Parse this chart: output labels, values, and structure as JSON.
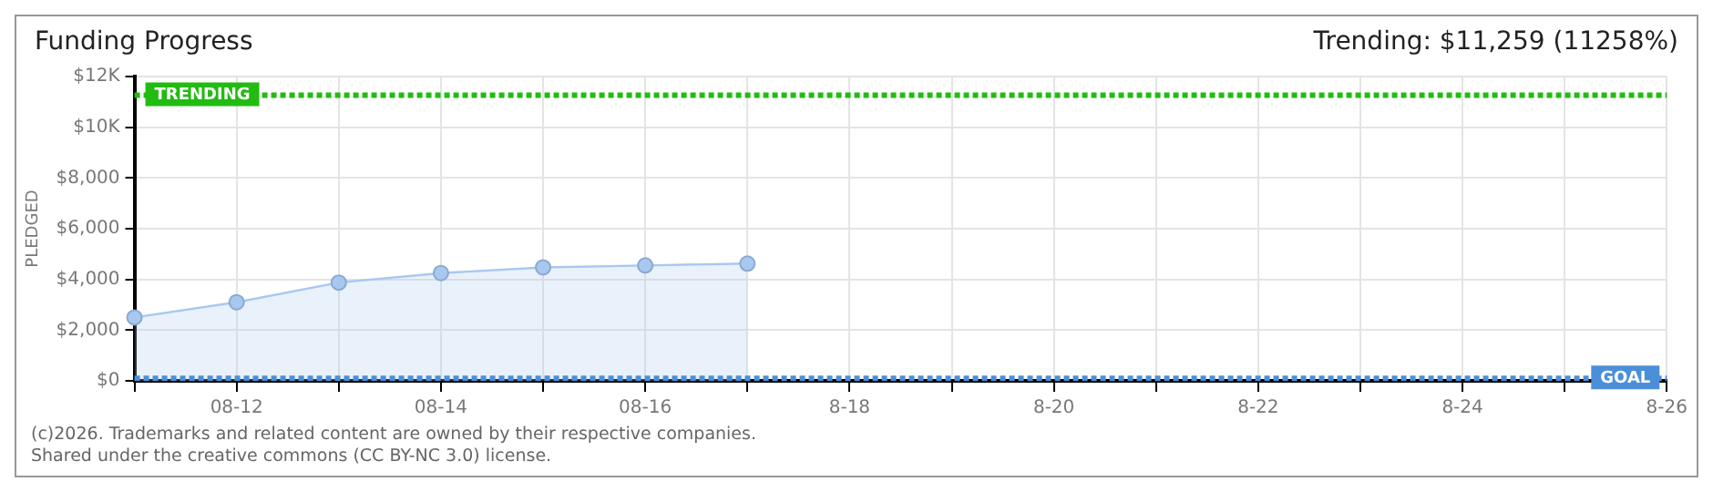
{
  "chart_data": {
    "type": "area",
    "title": "Funding Progress",
    "subtitle": "Trending: $11,259 (11258%)",
    "ylabel": "PLEDGED",
    "categories": [
      null,
      "08-12",
      null,
      "08-14",
      null,
      "08-16",
      null,
      "8-18",
      null,
      "8-20",
      null,
      "8-22",
      null,
      "8-24",
      null,
      "8-26"
    ],
    "series": [
      {
        "color": "#a8c8f0",
        "values": [
          2500,
          3100,
          3875,
          4250,
          4475,
          4550,
          4625,
          null,
          null,
          null,
          null,
          null,
          null,
          null,
          null,
          null
        ]
      }
    ],
    "ylim": [
      0,
      12000
    ],
    "yticks": [
      {
        "value": 0,
        "label": "$0"
      },
      {
        "value": 2000,
        "label": "$2,000"
      },
      {
        "value": 4000,
        "label": "$4,000"
      },
      {
        "value": 6000,
        "label": "$6,000"
      },
      {
        "value": 8000,
        "label": "$8,000"
      },
      {
        "value": 10000,
        "label": "$10K"
      },
      {
        "value": 12000,
        "label": "$12K"
      }
    ],
    "ref_lines": [
      {
        "axis": "y",
        "value": 11259,
        "label": "TRENDING",
        "color": "#22bb11",
        "line_style": "dotted"
      },
      {
        "axis": "y",
        "value": 100,
        "label": "GOAL",
        "color": "#4a8fd8",
        "line_style": "dotted"
      }
    ],
    "grid": true,
    "legend": false,
    "marker": "circle",
    "line_style": "solid",
    "annotations": [
      "(c)2026. Trademarks and related content are owned by their respective companies.",
      "Shared under the creative commons (CC BY-NC 3.0) license."
    ]
  }
}
